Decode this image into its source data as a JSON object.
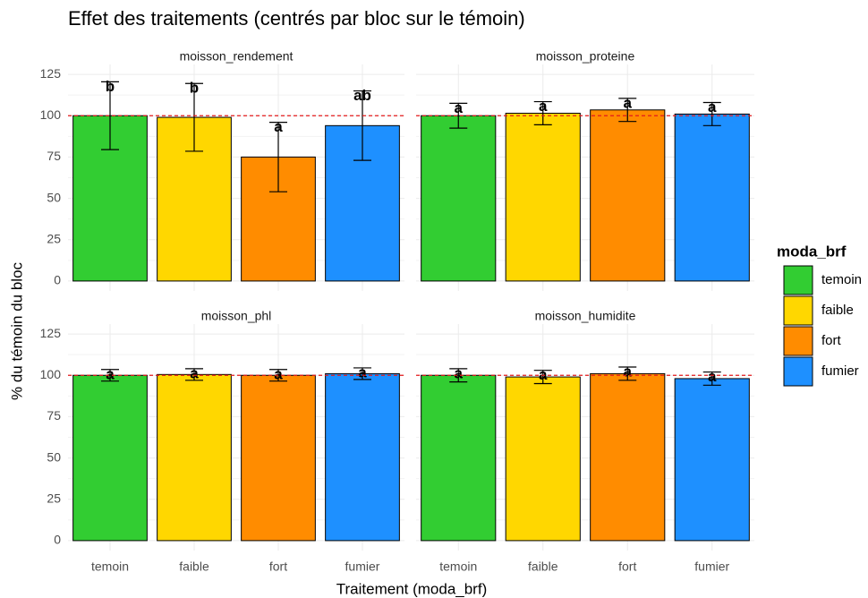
{
  "figure": {
    "title": "Effet des traitements (centrés par bloc sur le témoin)",
    "xlabel": "Traitement (moda_brf)",
    "ylabel": "% du témoin du bloc",
    "legend_title": "moda_brf"
  },
  "chart_data": [
    {
      "type": "bar",
      "title": "moisson_rendement",
      "categories": [
        "temoin",
        "faible",
        "fort",
        "fumier"
      ],
      "values": [
        100,
        99,
        75,
        94
      ],
      "errors": [
        20.5,
        20.5,
        21,
        21
      ],
      "annotations": [
        "b",
        "b",
        "a",
        "ab"
      ],
      "colors": [
        "#32cd32",
        "#ffd700",
        "#ff8c00",
        "#1e90ff"
      ],
      "reference_line": 100,
      "ylim": [
        -6,
        131
      ],
      "yticks": [
        0,
        25,
        50,
        75,
        100,
        125
      ],
      "grid": true
    },
    {
      "type": "bar",
      "title": "moisson_proteine",
      "categories": [
        "temoin",
        "faible",
        "fort",
        "fumier"
      ],
      "values": [
        100,
        101.5,
        103.5,
        101
      ],
      "errors": [
        7.5,
        7,
        7,
        7
      ],
      "annotations": [
        "a",
        "a",
        "a",
        "a"
      ],
      "colors": [
        "#32cd32",
        "#ffd700",
        "#ff8c00",
        "#1e90ff"
      ],
      "reference_line": 100,
      "ylim": [
        -6,
        131
      ],
      "yticks": [
        0,
        25,
        50,
        75,
        100,
        125
      ],
      "grid": true
    },
    {
      "type": "bar",
      "title": "moisson_phl",
      "categories": [
        "temoin",
        "faible",
        "fort",
        "fumier"
      ],
      "values": [
        100,
        100.5,
        100,
        101
      ],
      "errors": [
        3.5,
        3.5,
        3.5,
        3.5
      ],
      "annotations": [
        "a",
        "a",
        "a",
        "a"
      ],
      "colors": [
        "#32cd32",
        "#ffd700",
        "#ff8c00",
        "#1e90ff"
      ],
      "reference_line": 100,
      "ylim": [
        -6,
        131
      ],
      "yticks": [
        0,
        25,
        50,
        75,
        100,
        125
      ],
      "grid": true
    },
    {
      "type": "bar",
      "title": "moisson_humidite",
      "categories": [
        "temoin",
        "faible",
        "fort",
        "fumier"
      ],
      "values": [
        100,
        99,
        101,
        98
      ],
      "errors": [
        4,
        4,
        4,
        4
      ],
      "annotations": [
        "a",
        "a",
        "a",
        "a"
      ],
      "colors": [
        "#32cd32",
        "#ffd700",
        "#ff8c00",
        "#1e90ff"
      ],
      "reference_line": 100,
      "ylim": [
        -6,
        131
      ],
      "yticks": [
        0,
        25,
        50,
        75,
        100,
        125
      ],
      "grid": true
    }
  ]
}
